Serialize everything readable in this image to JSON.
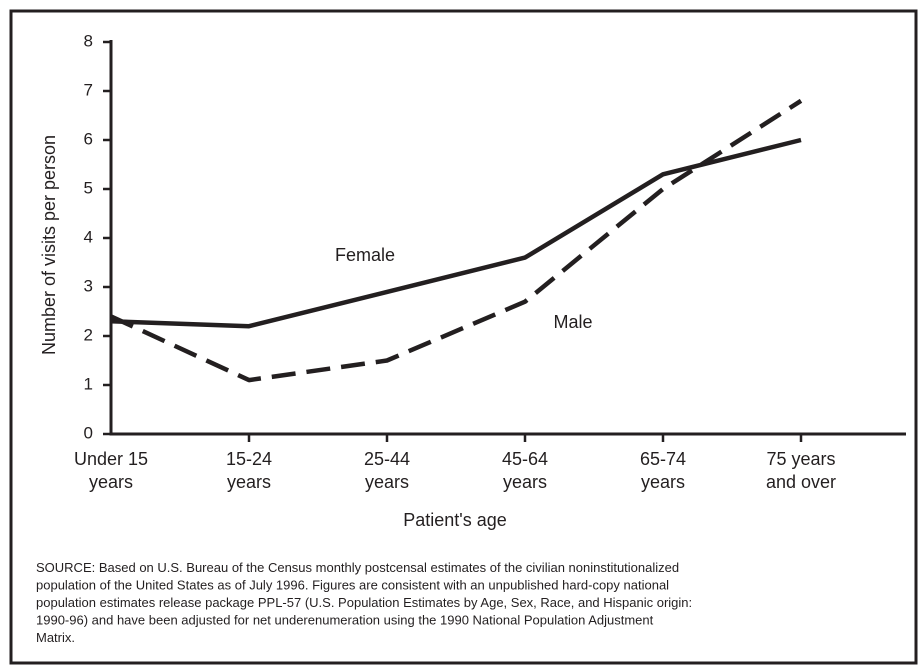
{
  "chart_data": {
    "type": "line",
    "x_label": "Patient's age",
    "y_label": "Number of visits per person",
    "categories": [
      [
        "Under 15",
        "years"
      ],
      [
        "15-24",
        "years"
      ],
      [
        "25-44",
        "years"
      ],
      [
        "45-64",
        "years"
      ],
      [
        "65-74",
        "years"
      ],
      [
        "75 years",
        "and over"
      ]
    ],
    "series": [
      {
        "name": "Female",
        "color": "#231f20",
        "style": "solid",
        "values": [
          2.3,
          2.2,
          2.9,
          3.6,
          5.3,
          6.0
        ]
      },
      {
        "name": "Male",
        "color": "#231f20",
        "style": "dashed",
        "values": [
          2.4,
          1.1,
          1.5,
          2.7,
          5.0,
          6.8
        ]
      }
    ],
    "ylim": [
      0,
      8
    ],
    "yticks": [
      0,
      1,
      2,
      3,
      4,
      5,
      6,
      7,
      8
    ],
    "note": [
      "SOURCE: Based on U.S. Bureau of the Census monthly postcensal estimates of the civilian noninstitutionalized",
      "population of the United States as of July 1996. Figures are consistent with an unpublished hard-copy national",
      "population estimates release package PPL-57 (U.S. Population Estimates by Age, Sex, Race, and Hispanic origin:",
      "1990-96) and have been adjusted for net underenumeration using the 1990 National Population Adjustment",
      "Matrix."
    ]
  }
}
